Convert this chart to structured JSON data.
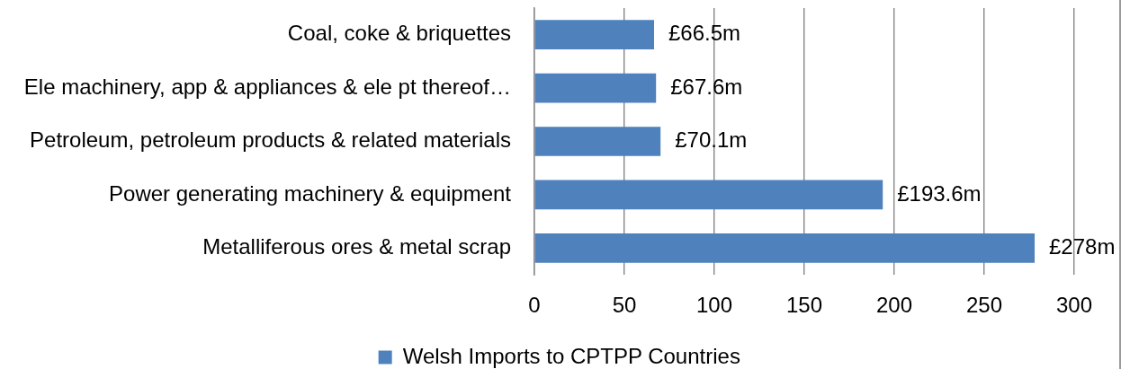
{
  "chart_data": {
    "type": "bar",
    "orientation": "horizontal",
    "categories": [
      "Coal, coke & briquettes",
      "Ele machinery, app & appliances & ele pt thereof…",
      "Petroleum, petroleum products & related materials",
      "Power generating machinery & equipment",
      "Metalliferous ores & metal scrap"
    ],
    "series": [
      {
        "name": "Welsh Imports to CPTPP Countries",
        "color": "#4f81bd",
        "values": [
          66.5,
          67.6,
          70.1,
          193.6,
          278
        ],
        "value_labels": [
          "£66.5m",
          "£67.6m",
          "£70.1m",
          "£193.6m",
          "£278m"
        ]
      }
    ],
    "xlim": [
      0,
      300
    ],
    "xticks": [
      0,
      50,
      100,
      150,
      200,
      250,
      300
    ],
    "grid": "x",
    "legend": "bottom"
  }
}
